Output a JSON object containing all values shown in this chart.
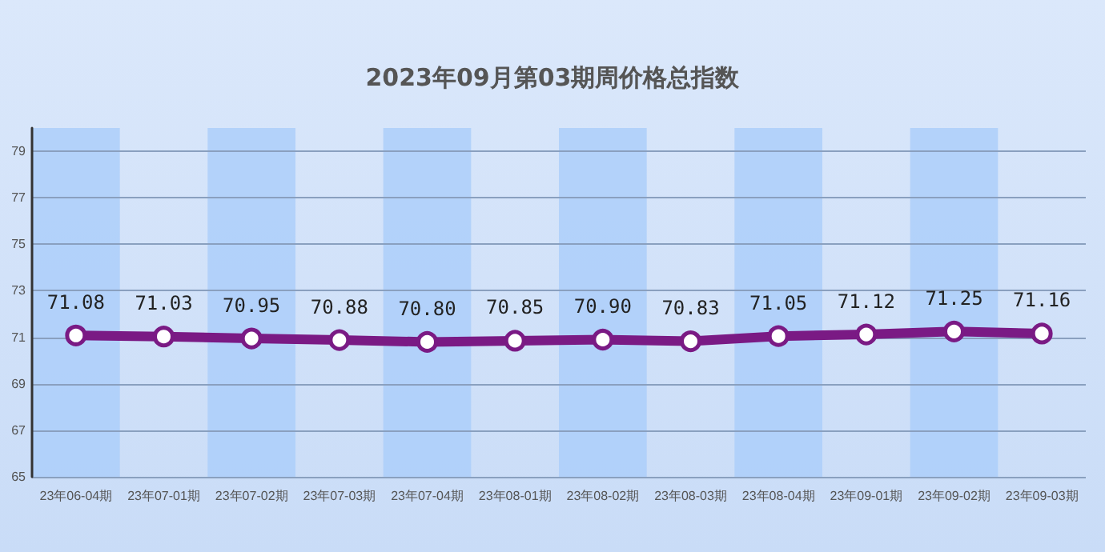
{
  "chart_data": {
    "type": "line",
    "title": "2023年09月第03期周价格总指数",
    "categories": [
      "23年06-04期",
      "23年07-01期",
      "23年07-02期",
      "23年07-03期",
      "23年07-04期",
      "23年08-01期",
      "23年08-02期",
      "23年08-03期",
      "23年08-04期",
      "23年09-01期",
      "23年09-02期",
      "23年09-03期"
    ],
    "series": [
      {
        "color": "#7a1a84",
        "values": [
          71.08,
          71.03,
          70.95,
          70.88,
          70.8,
          70.85,
          70.9,
          70.83,
          71.05,
          71.12,
          71.25,
          71.16
        ],
        "value_labels": [
          "71.08",
          "71.03",
          "70.95",
          "70.88",
          "70.80",
          "70.85",
          "70.90",
          "70.83",
          "71.05",
          "71.12",
          "71.25",
          "71.16"
        ]
      }
    ],
    "bands": [
      {
        "axis": "x",
        "from": "23年06-04期",
        "to": "23年06-04期",
        "color": "#aacdfa"
      },
      {
        "axis": "x",
        "from": "23年07-02期",
        "to": "23年07-02期",
        "color": "#aacdfa"
      },
      {
        "axis": "x",
        "from": "23年07-04期",
        "to": "23年07-04期",
        "color": "#aacdfa"
      },
      {
        "axis": "x",
        "from": "23年08-02期",
        "to": "23年08-02期",
        "color": "#aacdfa"
      },
      {
        "axis": "x",
        "from": "23年08-04期",
        "to": "23年08-04期",
        "color": "#aacdfa"
      },
      {
        "axis": "x",
        "from": "23年09-02期",
        "to": "23年09-02期",
        "color": "#aacdfa"
      }
    ],
    "ylim": [
      65,
      80
    ],
    "yticks": [
      65,
      67,
      69,
      71,
      73,
      75,
      77,
      79
    ],
    "grid": "y",
    "marker": "circle",
    "line_style": "solid"
  }
}
